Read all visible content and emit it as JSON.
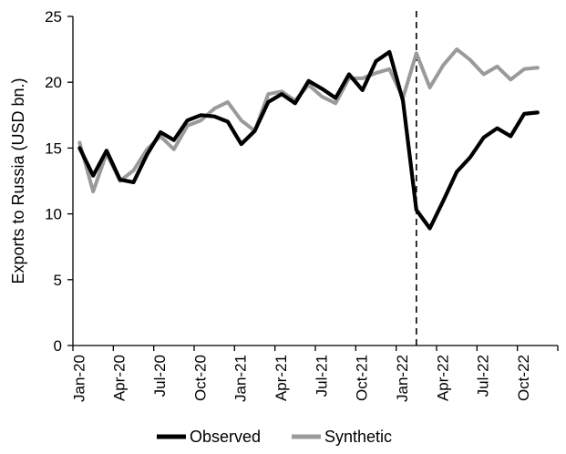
{
  "chart_data": {
    "type": "line",
    "ylabel": "Exports to Russia (USD bn.)",
    "xlabel": "",
    "ylim": [
      0,
      25
    ],
    "yticks": [
      0,
      5,
      10,
      15,
      20,
      25
    ],
    "grid": false,
    "legend_position": "bottom",
    "x": [
      "Jan-20",
      "Feb-20",
      "Mar-20",
      "Apr-20",
      "May-20",
      "Jun-20",
      "Jul-20",
      "Aug-20",
      "Sep-20",
      "Oct-20",
      "Nov-20",
      "Dec-20",
      "Jan-21",
      "Feb-21",
      "Mar-21",
      "Apr-21",
      "May-21",
      "Jun-21",
      "Jul-21",
      "Aug-21",
      "Sep-21",
      "Oct-21",
      "Nov-21",
      "Dec-21",
      "Jan-22",
      "Feb-22",
      "Mar-22",
      "Apr-22",
      "May-22",
      "Jun-22",
      "Jul-22",
      "Aug-22",
      "Sep-22",
      "Oct-22",
      "Nov-22",
      "Dec-22"
    ],
    "xtick_labels": [
      "Jan-20",
      "Apr-20",
      "Jul-20",
      "Oct-20",
      "Jan-21",
      "Apr-21",
      "Jul-21",
      "Oct-21",
      "Jan-22",
      "Apr-22",
      "Jul-22",
      "Oct-22"
    ],
    "xtick_indices": [
      0,
      3,
      6,
      9,
      12,
      15,
      18,
      21,
      24,
      27,
      30,
      33
    ],
    "vline_after_index": 26,
    "series": [
      {
        "name": "Observed",
        "color": "#000000",
        "values": [
          15.0,
          12.9,
          14.8,
          12.6,
          12.4,
          14.5,
          16.2,
          15.6,
          17.1,
          17.5,
          17.4,
          17.0,
          15.3,
          16.3,
          18.5,
          19.1,
          18.4,
          20.1,
          19.5,
          18.8,
          20.6,
          19.4,
          21.6,
          22.3,
          18.6,
          10.3,
          8.9,
          11.0,
          13.2,
          14.3,
          15.8,
          16.5,
          15.9,
          17.6,
          17.7,
          null
        ]
      },
      {
        "name": "Synthetic",
        "color": "#9a9a9a",
        "values": [
          15.4,
          11.7,
          14.6,
          12.5,
          13.3,
          14.9,
          15.9,
          14.9,
          16.7,
          17.1,
          18.0,
          18.5,
          17.1,
          16.3,
          19.1,
          19.3,
          18.6,
          19.8,
          18.9,
          18.4,
          20.3,
          20.3,
          20.7,
          21.0,
          18.8,
          22.2,
          19.6,
          21.3,
          22.5,
          21.7,
          20.6,
          21.2,
          20.2,
          21.0,
          21.1,
          null
        ]
      }
    ]
  }
}
